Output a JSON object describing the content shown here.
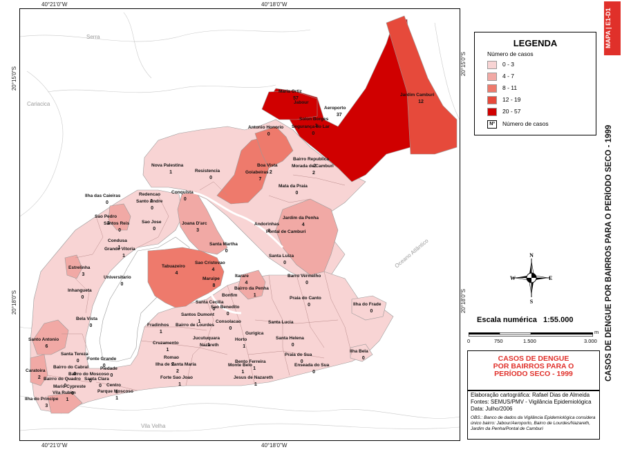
{
  "coords": {
    "top_left": "40°21'0\"W",
    "top_right": "40°18'0\"W",
    "bottom_left": "40°21'0\"W",
    "bottom_right": "40°18'0\"W",
    "left_top": "20°15'0\"S",
    "left_bottom": "20°18'0\"S",
    "right_top": "20°15'0\"S",
    "right_bottom": "20°18'0\"S"
  },
  "cities": {
    "serra": "Serra",
    "cariacica": "Cariacica",
    "vila_velha": "Vila Velha",
    "oceano": "Oceano Atlântico"
  },
  "colors": {
    "c0_3": "#f8d4d4",
    "c4_7": "#f1a9a5",
    "c8_11": "#ee7a6c",
    "c12_19": "#e64a3b",
    "c20_57": "#d00000",
    "accent": "#e0302a"
  },
  "legend": {
    "title": "LEGENDA",
    "subtitle": "Número de casos",
    "classes": [
      "0 - 3",
      "4 - 7",
      "8 - 11",
      "12 - 19",
      "20 - 57"
    ],
    "symbol": "Nº",
    "symbol_label": "Número de casos"
  },
  "compass": {
    "n": "N",
    "s": "S",
    "e": "E",
    "w": "W"
  },
  "scale": {
    "title": "Escala numérica",
    "ratio": "1:55.000",
    "labels": [
      "0",
      "750",
      "1.500",
      "3.000"
    ],
    "unit": "m"
  },
  "case_title": [
    "CASOS DE DENGUE",
    "POR BAIRROS PARA O",
    "PERÍODO SECO - 1999"
  ],
  "info": {
    "line1": "Elaboração cartográfica: Rafael Dias de Almeida",
    "line2": "Fontes: SEMUS/PMV - Vigilância Epidemiológica",
    "line3": "Data: Julho/2006",
    "obs": "OBS.: Banco de dados da Vigilância Epidemiológica considera único bairro: Jabour/Aeroporto, Bairro de Lourdes/Nazareth, Jardim da Penha/Pontal de Camburi"
  },
  "side": {
    "tag": "MAPA | E1-D1",
    "title": "CASOS DE DENGUE POR BAIRROS PARA O PERÍODO SECO - 1999"
  },
  "map_labels": [
    {
      "n": "Maria Ortiz",
      "c": "57"
    },
    {
      "n": "Jabour",
      "c": ""
    },
    {
      "n": "Aeroporto",
      "c": "37"
    },
    {
      "n": "Jardim Camburi",
      "c": "12"
    },
    {
      "n": "Solon Borges",
      "c": "3"
    },
    {
      "n": "Segurança do Lar",
      "c": "0"
    },
    {
      "n": "Antonio Honorio",
      "c": "0"
    },
    {
      "n": "Bairro Republica",
      "c": "2"
    },
    {
      "n": "Boa Vista",
      "c": "2"
    },
    {
      "n": "Morada de Camburi",
      "c": "2"
    },
    {
      "n": "Goiabeiras",
      "c": "7"
    },
    {
      "n": "Mata da Praia",
      "c": "0"
    },
    {
      "n": "Nova Palestina",
      "c": "1"
    },
    {
      "n": "Resistencia",
      "c": "0"
    },
    {
      "n": "Jardim da Penha",
      "c": "4"
    },
    {
      "n": "Redencao",
      "c": "0"
    },
    {
      "n": "Conquista",
      "c": "0"
    },
    {
      "n": "Ilha das Caieiras",
      "c": "0"
    },
    {
      "n": "Santo Andre",
      "c": "0"
    },
    {
      "n": "Sao Pedro",
      "c": "3"
    },
    {
      "n": "Santos Reis",
      "c": "0"
    },
    {
      "n": "Sao Jose",
      "c": "0"
    },
    {
      "n": "Joana D'arc",
      "c": "3"
    },
    {
      "n": "Andorinhas",
      "c": "3"
    },
    {
      "n": "Pontal de Camburi",
      "c": ""
    },
    {
      "n": "Condusa",
      "c": "1"
    },
    {
      "n": "Grande Vitoria",
      "c": "1"
    },
    {
      "n": "Santa Martha",
      "c": "0"
    },
    {
      "n": "Santa Luiza",
      "c": "0"
    },
    {
      "n": "Estrelinha",
      "c": "3"
    },
    {
      "n": "Universitario",
      "c": "0"
    },
    {
      "n": "Tabuazeiro",
      "c": "4"
    },
    {
      "n": "Sao Cristovao",
      "c": "4"
    },
    {
      "n": "Itarare",
      "c": "4"
    },
    {
      "n": "Maruipe",
      "c": "8"
    },
    {
      "n": "Bairro da Penha",
      "c": "1"
    },
    {
      "n": "Barro Vermelho",
      "c": "0"
    },
    {
      "n": "Inhangueta",
      "c": "0"
    },
    {
      "n": "Bonfim",
      "c": ""
    },
    {
      "n": "Santa Cecilia",
      "c": "0"
    },
    {
      "n": "Sao Benedito",
      "c": "0"
    },
    {
      "n": "Praia do Canto",
      "c": "0"
    },
    {
      "n": "Ilha do Frade",
      "c": "0"
    },
    {
      "n": "Bela Vista",
      "c": "0"
    },
    {
      "n": "Santos Dumont",
      "c": "1"
    },
    {
      "n": "Fradinhos",
      "c": "1"
    },
    {
      "n": "Bairro de Lourdes",
      "c": ""
    },
    {
      "n": "Consolacao",
      "c": "0"
    },
    {
      "n": "Santa Lucia",
      "c": ""
    },
    {
      "n": "Gurigica",
      "c": ""
    },
    {
      "n": "Santo Antonio",
      "c": "6"
    },
    {
      "n": "Cruzamento",
      "c": "1"
    },
    {
      "n": "Jucutuquara",
      "c": "1"
    },
    {
      "n": "Horto",
      "c": "1"
    },
    {
      "n": "Nazareth",
      "c": ""
    },
    {
      "n": "Santa Helena",
      "c": "0"
    },
    {
      "n": "Santa Tereza",
      "c": "0"
    },
    {
      "n": "Romao",
      "c": "2"
    },
    {
      "n": "Ilha de Santa Maria",
      "c": "2"
    },
    {
      "n": "Bento Ferreira",
      "c": "1"
    },
    {
      "n": "Praia do Sua",
      "c": "0"
    },
    {
      "n": "Ilha Bela",
      "c": "0"
    },
    {
      "n": "Caratoira",
      "c": "2"
    },
    {
      "n": "Fonte Grande",
      "c": "0"
    },
    {
      "n": "Bairro do Cabral",
      "c": "0"
    },
    {
      "n": "Piedade",
      "c": "0"
    },
    {
      "n": "Monte Belo",
      "c": "1"
    },
    {
      "n": "Enseada do Sua",
      "c": "0"
    },
    {
      "n": "Bairro do Moscoso",
      "c": "0"
    },
    {
      "n": "Bairro do Quadro",
      "c": "0"
    },
    {
      "n": "Santa Clara",
      "c": "0"
    },
    {
      "n": "Forte Sao Joao",
      "c": "1"
    },
    {
      "n": "Jesus de Nazareth",
      "c": "1"
    },
    {
      "n": "Mario Cypreste",
      "c": "0"
    },
    {
      "n": "Centro",
      "c": "1"
    },
    {
      "n": "Vila Rubim",
      "c": "1"
    },
    {
      "n": "Parque Moscoso",
      "c": "1"
    },
    {
      "n": "Ilha do Principe",
      "c": "3"
    }
  ]
}
